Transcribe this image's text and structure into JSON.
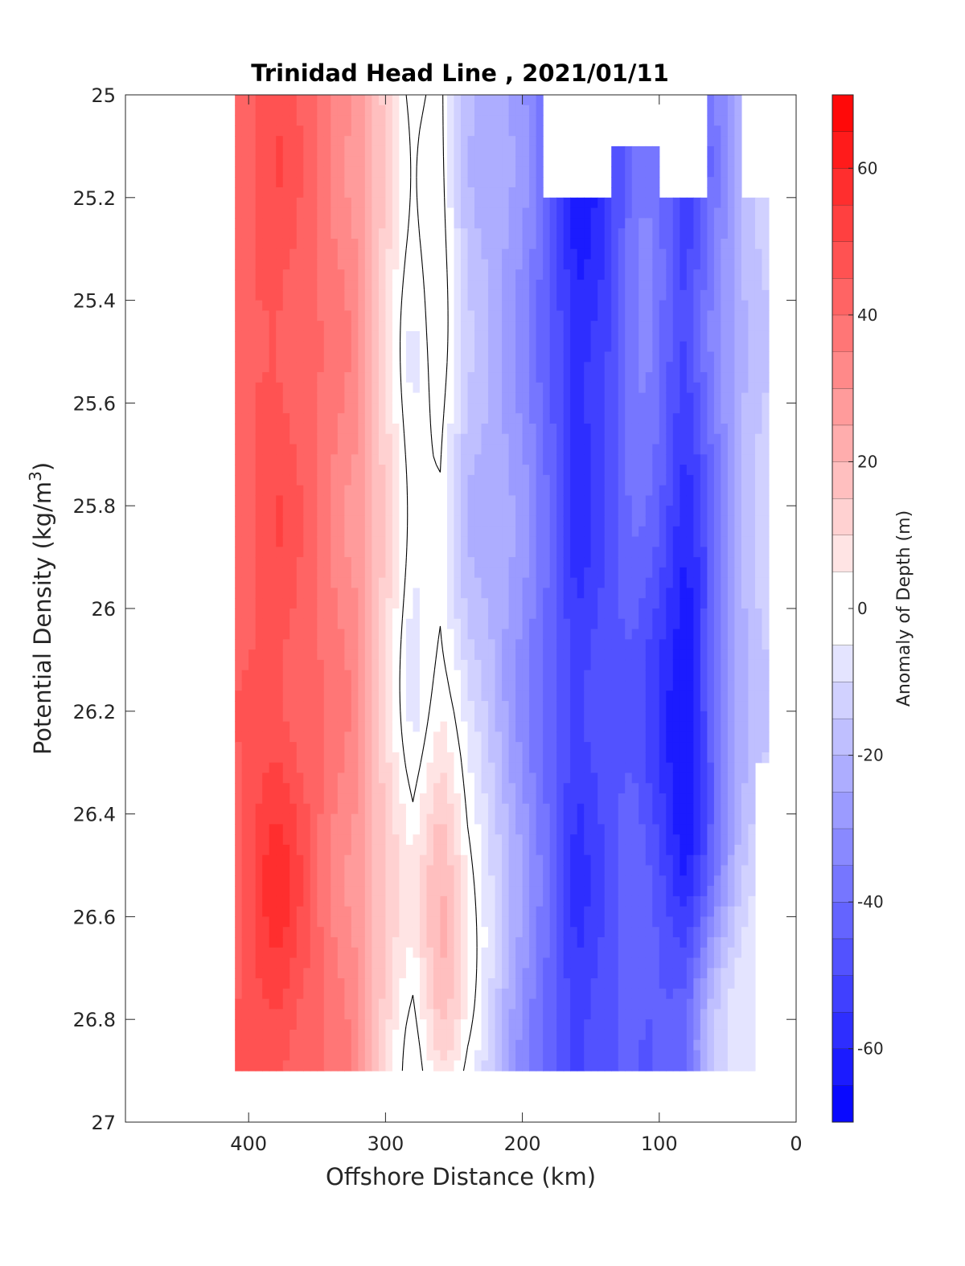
{
  "chart_data": {
    "type": "contour",
    "title": "Trinidad Head Line , 2021/01/11",
    "xlabel": "Offshore Distance (km)",
    "ylabel": "Potential Density (kg/m",
    "ylabel_sup": "3",
    "ylabel_close": ")",
    "xlim": [
      490,
      0
    ],
    "x_reversed": true,
    "ylim": [
      25,
      27
    ],
    "y_reversed": true,
    "xticks": [
      400,
      300,
      200,
      100,
      0
    ],
    "yticks": [
      25,
      25.2,
      25.4,
      25.6,
      25.8,
      26,
      26.2,
      26.4,
      26.6,
      26.8,
      27
    ],
    "ytick_labels": [
      "25",
      "25.2",
      "25.4",
      "25.6",
      "25.8",
      "26",
      "26.2",
      "26.4",
      "26.6",
      "26.8",
      "27"
    ],
    "grid": false,
    "colorbar": {
      "label": "Anomaly of Depth (m)",
      "range": [
        -70,
        70
      ],
      "ticks": [
        60,
        40,
        20,
        0,
        -20,
        -40,
        -60
      ],
      "levels": [
        -70,
        -65,
        -60,
        -55,
        -50,
        -45,
        -40,
        -35,
        -30,
        -25,
        -20,
        -15,
        -10,
        -5,
        5,
        10,
        15,
        20,
        25,
        30,
        35,
        40,
        45,
        50,
        55,
        60,
        65,
        70
      ],
      "colormap": "blue-white-red",
      "max_color": "#ff0000",
      "min_color": "#0000ff"
    },
    "data_extent": {
      "x_range": [
        410,
        20
      ],
      "y_range": [
        25,
        26.9
      ]
    },
    "zero_contour_color": "#000000",
    "field": {
      "x": [
        410,
        380,
        350,
        320,
        300,
        280,
        260,
        240,
        220,
        200,
        180,
        160,
        140,
        120,
        100,
        80,
        60,
        40,
        20
      ],
      "y": [
        25,
        25.1,
        25.2,
        25.3,
        25.4,
        25.5,
        25.6,
        25.7,
        25.8,
        25.9,
        26,
        26.1,
        26.2,
        26.3,
        26.4,
        26.5,
        26.6,
        26.7,
        26.8,
        26.9
      ],
      "anomaly_profile_by_x": [
        42,
        48,
        40,
        30,
        12,
        -8,
        -3,
        -18,
        -22,
        -30,
        -42,
        -55,
        -48,
        -42,
        -45,
        -52,
        -35,
        -20,
        -12
      ]
    }
  }
}
